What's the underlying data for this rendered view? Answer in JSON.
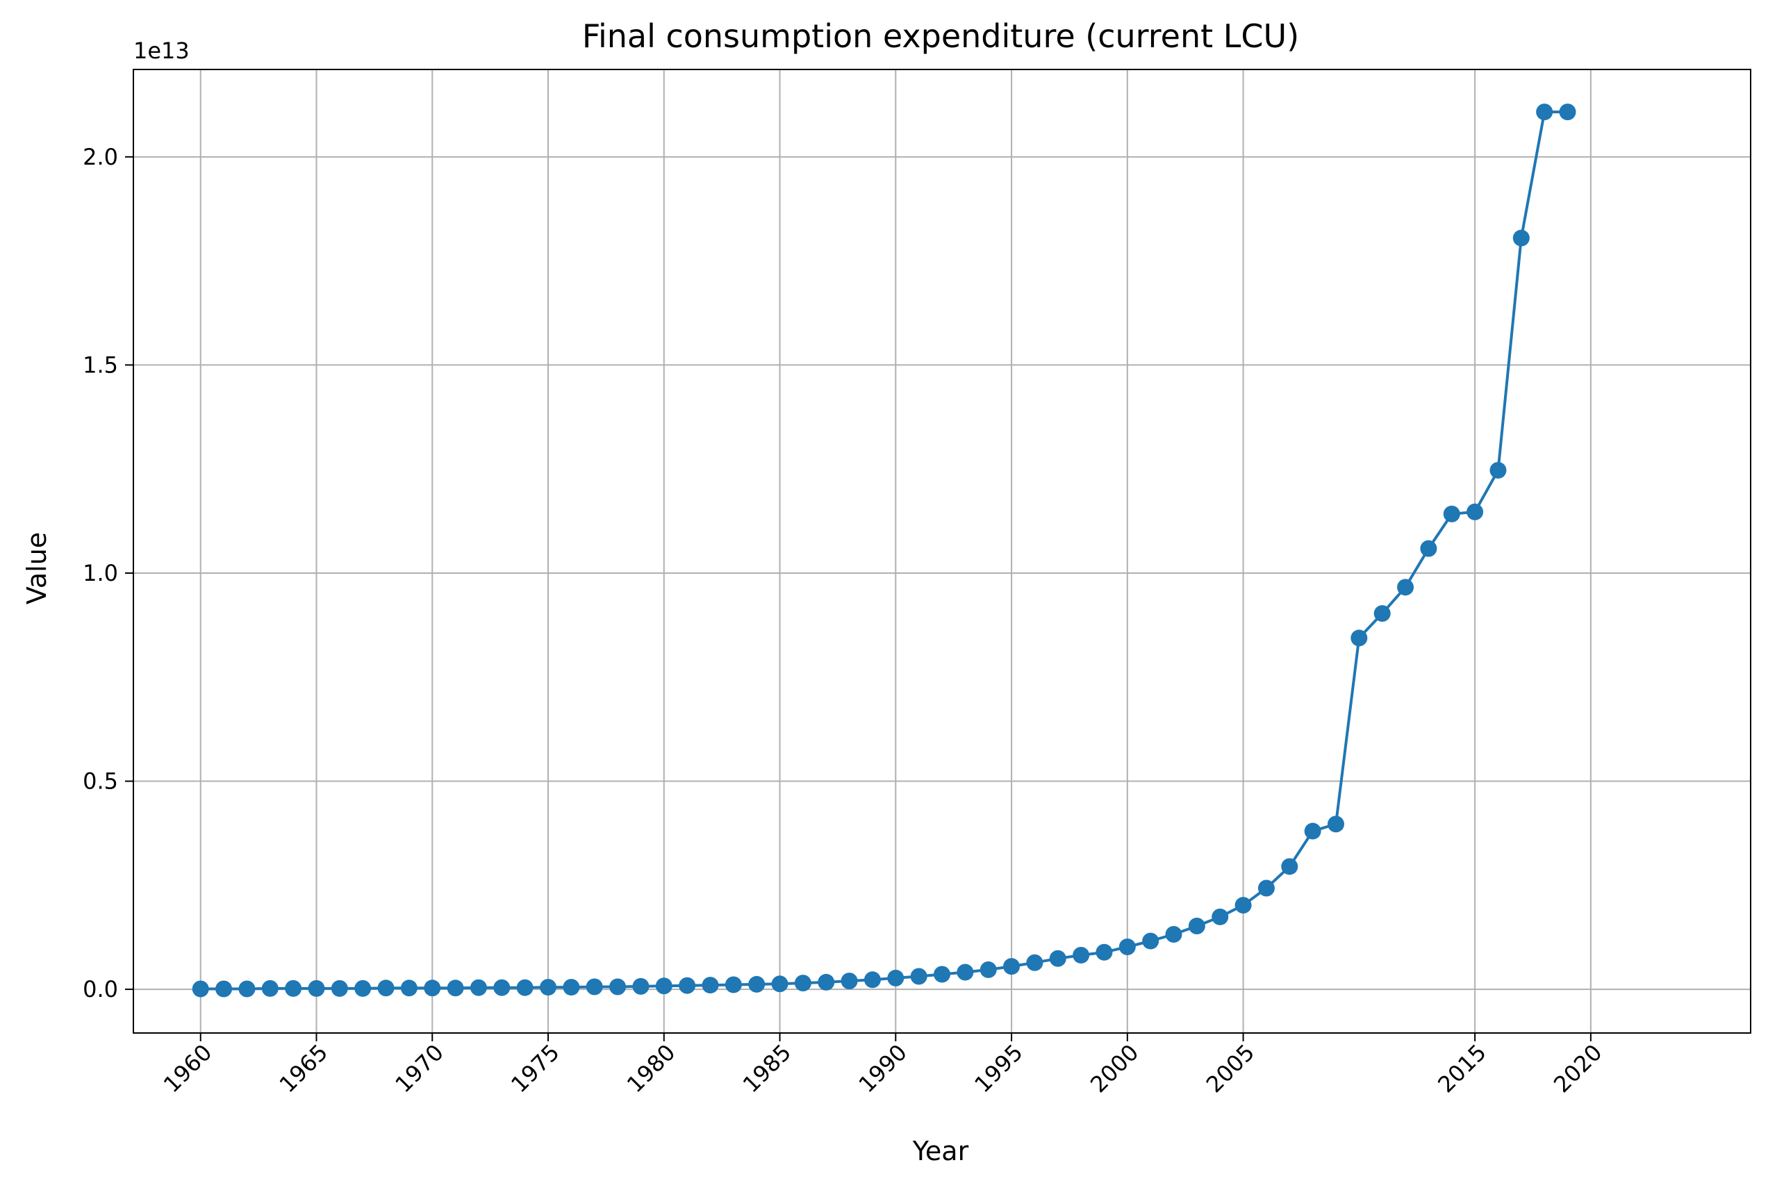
{
  "chart_data": {
    "type": "line",
    "title": "Final consumption expenditure (current LCU)",
    "xlabel": "Year",
    "ylabel": "Value",
    "y_offset_label": "1e13",
    "y_scale_factor": 10000000000000.0,
    "x_ticks": [
      1960,
      1965,
      1970,
      1975,
      1980,
      1985,
      1990,
      1995,
      2000,
      2005,
      2015,
      2020
    ],
    "y_ticks": [
      0.0,
      0.5,
      1.0,
      1.5,
      2.0
    ],
    "y_tick_labels": [
      "0.0",
      "0.5",
      "1.0",
      "1.5",
      "2.0"
    ],
    "xlim": [
      1957.1,
      2026.9
    ],
    "ylim": [
      -0.105,
      2.21
    ],
    "grid": true,
    "color": "#1f77b4",
    "series": [
      {
        "x": [
          1960,
          1961,
          1962,
          1963,
          1964,
          1965,
          1966,
          1967,
          1968,
          1969,
          1970,
          1971,
          1972,
          1973,
          1974,
          1975,
          1976,
          1977,
          1978,
          1979,
          1980,
          1981,
          1982,
          1983,
          1984,
          1985,
          1986,
          1987,
          1988,
          1989,
          1990,
          1991,
          1992,
          1993,
          1994,
          1995,
          1996,
          1997,
          1998,
          1999,
          2000,
          2001,
          2002,
          2003,
          2004,
          2005,
          2006,
          2007,
          2008,
          2009,
          2010,
          2011,
          2012,
          2013
        ],
        "y": [
          0.001,
          0.001,
          0.001,
          0.002,
          0.002,
          0.002,
          0.002,
          0.002,
          0.003,
          0.003,
          0.003,
          0.003,
          0.004,
          0.004,
          0.004,
          0.005,
          0.005,
          0.006,
          0.006,
          0.007,
          0.008,
          0.009,
          0.01,
          0.011,
          0.012,
          0.013,
          0.015,
          0.017,
          0.02,
          0.023,
          0.027,
          0.031,
          0.036,
          0.041,
          0.047,
          0.055,
          0.064,
          0.074,
          0.082,
          0.089,
          0.102,
          0.116,
          0.132,
          0.152,
          0.174,
          0.202,
          0.243,
          0.295,
          0.38,
          0.397,
          0.844,
          0.903,
          0.966,
          1.059
        ]
      }
    ],
    "x_values_extra": [
      2014,
      2015,
      2016,
      2017,
      2018,
      2019
    ],
    "y_values_extra": [
      1.142,
      1.147,
      1.247,
      1.805,
      2.108,
      2.108
    ]
  }
}
